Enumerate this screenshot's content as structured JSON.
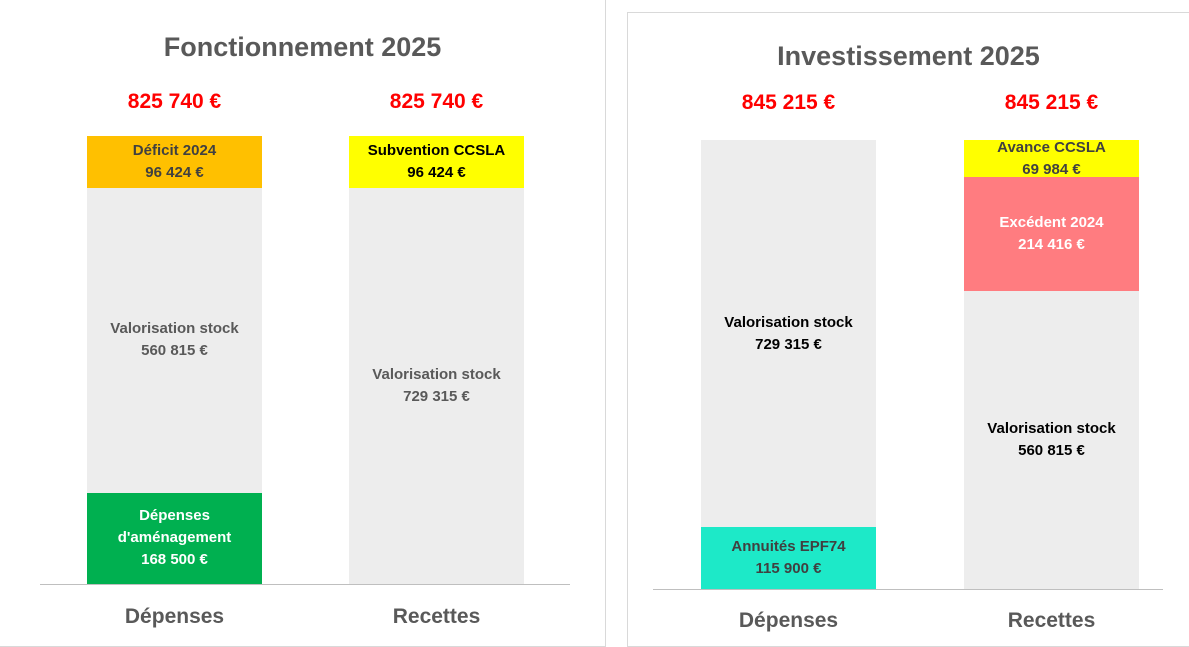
{
  "chart_data": [
    {
      "type": "stacked_bar",
      "title": "Fonctionnement 2025",
      "bars": [
        {
          "category": "Dépenses",
          "total": 825740,
          "total_label": "825 740 €",
          "segments": [
            {
              "name": "Dépenses d'aménagement",
              "value": 168500,
              "value_label": "168 500 €",
              "color": "#00b050",
              "label_color": "#ffffff"
            },
            {
              "name": "Valorisation stock",
              "value": 560815,
              "value_label": "560 815 €",
              "color": "#ededed",
              "label_color": "#595959"
            },
            {
              "name": "Déficit 2024",
              "value": 96424,
              "value_label": "96 424 €",
              "color": "#ffc000",
              "label_color": "#404040"
            }
          ]
        },
        {
          "category": "Recettes",
          "total": 825740,
          "total_label": "825 740 €",
          "segments": [
            {
              "name": "Valorisation stock",
              "value": 729315,
              "value_label": "729 315 €",
              "color": "#ededed",
              "label_color": "#595959"
            },
            {
              "name": "Subvention CCSLA",
              "value": 96424,
              "value_label": "96 424 €",
              "color": "#ffff00",
              "label_color": "#000000"
            }
          ]
        }
      ]
    },
    {
      "type": "stacked_bar",
      "title": "Investissement 2025",
      "bars": [
        {
          "category": "Dépenses",
          "total": 845215,
          "total_label": "845 215 €",
          "segments": [
            {
              "name": "Annuités EPF74",
              "value": 115900,
              "value_label": "115 900 €",
              "color": "#1de9c8",
              "label_color": "#404040"
            },
            {
              "name": "Valorisation stock",
              "value": 729315,
              "value_label": "729 315 €",
              "color": "#ededed",
              "label_color": "#000000"
            }
          ]
        },
        {
          "category": "Recettes",
          "total": 845215,
          "total_label": "845 215 €",
          "segments": [
            {
              "name": "Valorisation stock",
              "value": 560815,
              "value_label": "560 815 €",
              "color": "#ededed",
              "label_color": "#000000"
            },
            {
              "name": "Excédent 2024",
              "value": 214416,
              "value_label": "214 416 €",
              "color": "#ff7c80",
              "label_color": "#ffffff"
            },
            {
              "name": "Avance CCSLA",
              "value": 69984,
              "value_label": "69 984 €",
              "color": "#ffff00",
              "label_color": "#404040"
            }
          ]
        }
      ]
    }
  ]
}
